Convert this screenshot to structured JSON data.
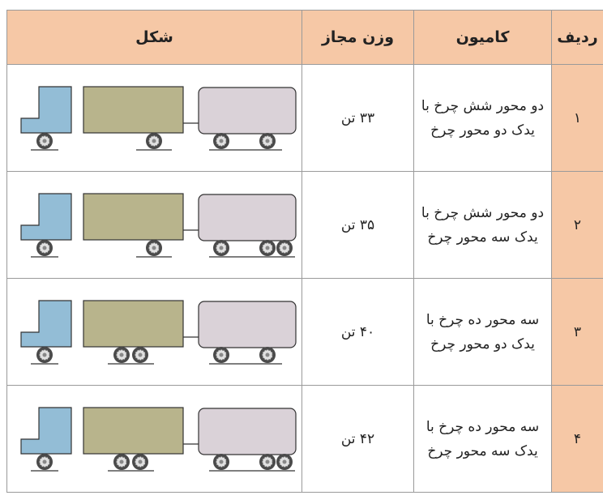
{
  "table": {
    "headers": [
      "ردیف",
      "کامیون",
      "وزن مجاز",
      "شکل"
    ],
    "rows": [
      {
        "number": "۱",
        "truck": [
          "دو محور شش چرخ با",
          "یدک دو محور چرخ"
        ],
        "weight": "۳۳ تن"
      },
      {
        "number": "۲",
        "truck": [
          "دو محور شش چرخ با",
          "یدک سه محور چرخ"
        ],
        "weight": "۳۵ تن"
      },
      {
        "number": "۳",
        "truck": [
          "سه محور ده چرخ با",
          "یدک دو محور چرخ"
        ],
        "weight": "۴۰ تن"
      },
      {
        "number": "۴",
        "truck": [
          "سه محور ده چرخ با",
          "یدک سه محور چرخ"
        ],
        "weight": "۴۲ تن"
      }
    ]
  }
}
